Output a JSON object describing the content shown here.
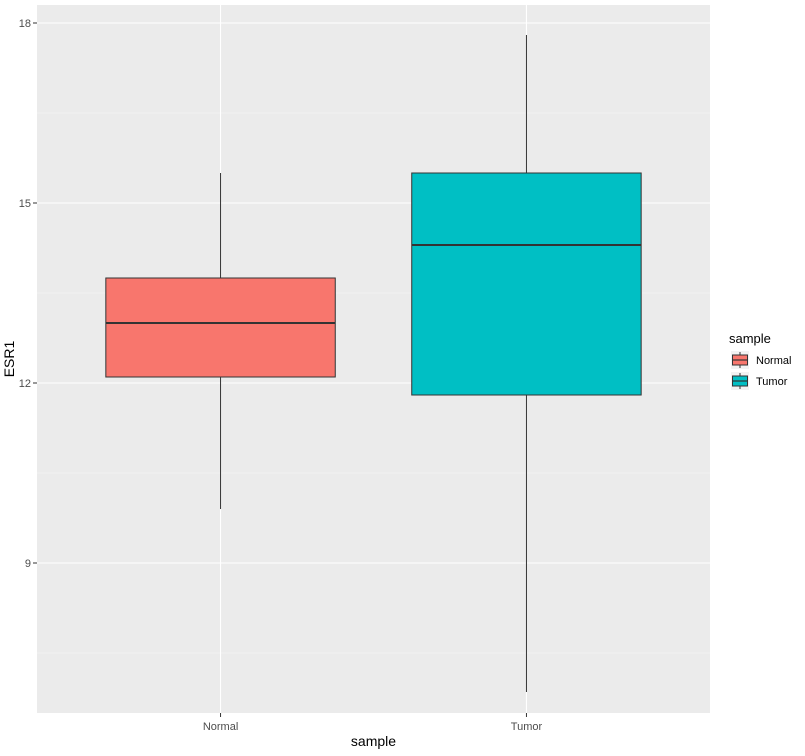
{
  "chart_data": {
    "type": "boxplot",
    "xlabel": "sample",
    "ylabel": "ESR1",
    "categories": [
      "Normal",
      "Tumor"
    ],
    "ylim": [
      6.5,
      18.3
    ],
    "y_ticks": [
      9,
      12,
      15,
      18
    ],
    "y_tick_labels": [
      "9",
      "12",
      "15",
      "18"
    ],
    "grid": true,
    "legend": {
      "title": "sample",
      "position": "right",
      "entries": [
        "Normal",
        "Tumor"
      ]
    },
    "boxes": [
      {
        "name": "Normal",
        "min": 9.9,
        "q1": 12.1,
        "median": 13.0,
        "q3": 13.75,
        "max": 15.5,
        "color": "#F8766D"
      },
      {
        "name": "Tumor",
        "min": 6.85,
        "q1": 11.8,
        "median": 14.3,
        "q3": 15.5,
        "max": 17.8,
        "color": "#00BFC4"
      }
    ]
  }
}
